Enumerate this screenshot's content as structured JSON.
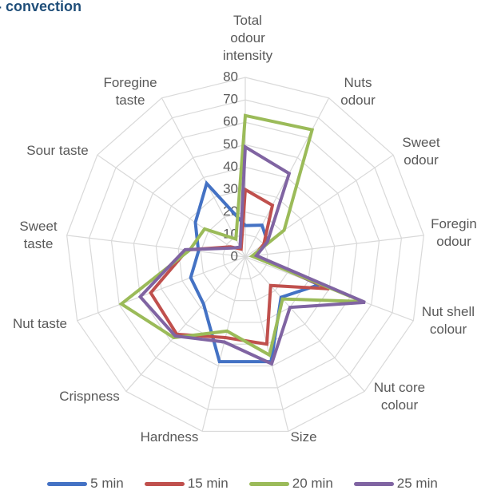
{
  "chart_data": {
    "type": "radar",
    "title": "- convection",
    "categories": [
      "Total odour intensity",
      "Nuts odour",
      "Sweet odour",
      "Foregin odour",
      "Nut shell colour",
      "Nut core colour",
      "Size",
      "Hardness",
      "Crispness",
      "Nut taste",
      "Sweet taste",
      "Sour taste",
      "Foregine taste"
    ],
    "series": [
      {
        "name": "5 min",
        "color": "#4472c4",
        "values": [
          14,
          16,
          12,
          5,
          35,
          24,
          48,
          48,
          28,
          26,
          21,
          27,
          37
        ]
      },
      {
        "name": "15 min",
        "color": "#c0504d",
        "values": [
          30,
          26,
          10,
          4,
          40,
          17,
          40,
          37,
          46,
          45,
          26,
          8,
          4
        ]
      },
      {
        "name": "20 min",
        "color": "#9bbb59",
        "values": [
          63,
          64,
          21,
          3,
          56,
          25,
          45,
          34,
          48,
          59,
          25,
          22,
          9
        ]
      },
      {
        "name": "25 min",
        "color": "#8064a2",
        "values": [
          49,
          42,
          12,
          5,
          57,
          30,
          49,
          39,
          47,
          50,
          27,
          7,
          5
        ]
      }
    ],
    "ylim": [
      0,
      80
    ],
    "yticks": [
      0,
      10,
      20,
      30,
      40,
      50,
      60,
      70,
      80
    ],
    "grid": true,
    "legend": "bottom"
  }
}
